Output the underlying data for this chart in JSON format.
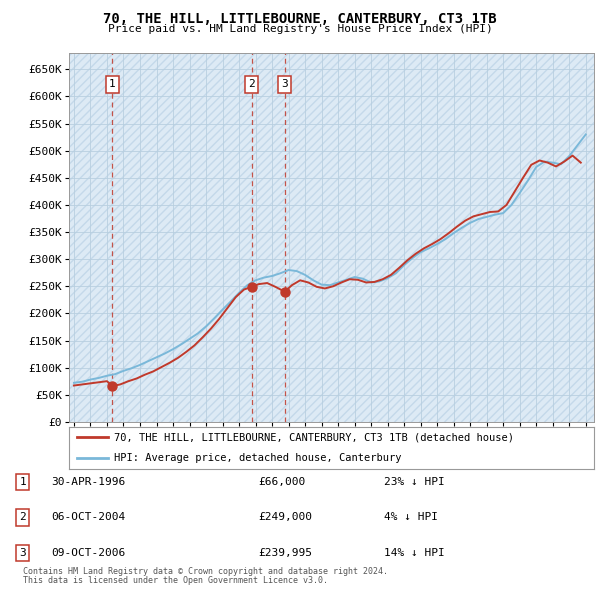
{
  "title": "70, THE HILL, LITTLEBOURNE, CANTERBURY, CT3 1TB",
  "subtitle": "Price paid vs. HM Land Registry's House Price Index (HPI)",
  "legend_line1": "70, THE HILL, LITTLEBOURNE, CANTERBURY, CT3 1TB (detached house)",
  "legend_line2": "HPI: Average price, detached house, Canterbury",
  "footer1": "Contains HM Land Registry data © Crown copyright and database right 2024.",
  "footer2": "This data is licensed under the Open Government Licence v3.0.",
  "transactions": [
    {
      "num": 1,
      "date": "30-APR-1996",
      "price": 66000,
      "hpi_note": "23% ↓ HPI",
      "year": 1996.33
    },
    {
      "num": 2,
      "date": "06-OCT-2004",
      "price": 249000,
      "hpi_note": "4% ↓ HPI",
      "year": 2004.77
    },
    {
      "num": 3,
      "date": "09-OCT-2006",
      "price": 239995,
      "hpi_note": "14% ↓ HPI",
      "year": 2006.77
    }
  ],
  "hpi_color": "#7ab8d9",
  "price_color": "#c0392b",
  "marker_color": "#c0392b",
  "dashed_color": "#c0392b",
  "bg_color": "#ddeaf5",
  "grid_color": "#b8cfe0",
  "ylim": [
    0,
    680000
  ],
  "yticks": [
    0,
    50000,
    100000,
    150000,
    200000,
    250000,
    300000,
    350000,
    400000,
    450000,
    500000,
    550000,
    600000,
    650000
  ],
  "xlim_start": 1993.7,
  "xlim_end": 2025.5,
  "hpi_x": [
    1994.0,
    1994.5,
    1995.0,
    1995.5,
    1996.0,
    1996.5,
    1997.0,
    1997.5,
    1998.0,
    1998.5,
    1999.0,
    1999.5,
    2000.0,
    2000.5,
    2001.0,
    2001.5,
    2002.0,
    2002.5,
    2003.0,
    2003.5,
    2004.0,
    2004.5,
    2005.0,
    2005.5,
    2006.0,
    2006.5,
    2007.0,
    2007.5,
    2008.0,
    2008.5,
    2009.0,
    2009.5,
    2010.0,
    2010.5,
    2011.0,
    2011.5,
    2012.0,
    2012.5,
    2013.0,
    2013.5,
    2014.0,
    2014.5,
    2015.0,
    2015.5,
    2016.0,
    2016.5,
    2017.0,
    2017.5,
    2018.0,
    2018.5,
    2019.0,
    2019.5,
    2020.0,
    2020.5,
    2021.0,
    2021.5,
    2022.0,
    2022.5,
    2023.0,
    2023.5,
    2024.0,
    2024.5,
    2025.0
  ],
  "hpi_y": [
    72000,
    74000,
    78000,
    81000,
    85000,
    88000,
    94000,
    99000,
    105000,
    112000,
    119000,
    126000,
    134000,
    143000,
    153000,
    163000,
    176000,
    191000,
    207000,
    222000,
    238000,
    252000,
    261000,
    266000,
    269000,
    274000,
    280000,
    278000,
    271000,
    261000,
    253000,
    252000,
    257000,
    262000,
    267000,
    264000,
    257000,
    259000,
    265000,
    274000,
    289000,
    302000,
    313000,
    320000,
    328000,
    337000,
    348000,
    358000,
    367000,
    374000,
    378000,
    382000,
    385000,
    400000,
    422000,
    445000,
    470000,
    480000,
    478000,
    475000,
    490000,
    510000,
    530000
  ],
  "price_x": [
    1994.0,
    1994.5,
    1995.0,
    1995.5,
    1996.0,
    1996.33,
    1996.8,
    1997.3,
    1997.8,
    1998.3,
    1998.8,
    1999.3,
    1999.8,
    2000.3,
    2000.8,
    2001.3,
    2001.8,
    2002.3,
    2002.8,
    2003.3,
    2003.8,
    2004.3,
    2004.77,
    2005.2,
    2005.7,
    2006.2,
    2006.77,
    2007.2,
    2007.7,
    2008.2,
    2008.7,
    2009.2,
    2009.7,
    2010.2,
    2010.7,
    2011.2,
    2011.7,
    2012.2,
    2012.7,
    2013.2,
    2013.7,
    2014.2,
    2014.7,
    2015.2,
    2015.7,
    2016.2,
    2016.7,
    2017.2,
    2017.7,
    2018.2,
    2018.7,
    2019.2,
    2019.7,
    2020.2,
    2020.7,
    2021.2,
    2021.7,
    2022.2,
    2022.7,
    2023.2,
    2023.7,
    2024.2,
    2024.7
  ],
  "price_y": [
    67000,
    69000,
    71000,
    73000,
    75000,
    66000,
    69000,
    75000,
    80000,
    87000,
    93000,
    101000,
    109000,
    118000,
    129000,
    141000,
    156000,
    172000,
    190000,
    210000,
    230000,
    244000,
    249000,
    254000,
    256000,
    249000,
    239995,
    252000,
    261000,
    257000,
    249000,
    246000,
    250000,
    257000,
    263000,
    262000,
    257000,
    258000,
    263000,
    271000,
    284000,
    298000,
    310000,
    320000,
    328000,
    337000,
    348000,
    360000,
    371000,
    379000,
    383000,
    387000,
    388000,
    400000,
    425000,
    450000,
    474000,
    482000,
    478000,
    471000,
    480000,
    491000,
    478000
  ]
}
